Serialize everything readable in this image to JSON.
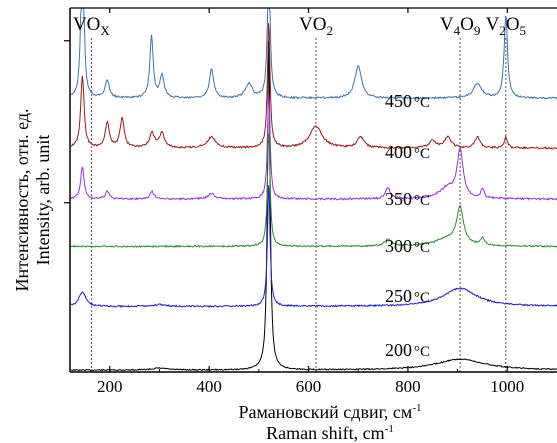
{
  "chart_data": {
    "type": "line",
    "xlabel_ru": "Рамановский сдвиг, см",
    "xlabel_ru_sup": "-1",
    "xlabel_en": "Raman shift, cm",
    "xlabel_en_sup": "-1",
    "ylabel_ru": "Интенсивность, отн. ед.",
    "ylabel_en": "Intensity, arb. unit",
    "xlim": [
      120,
      1100
    ],
    "x_ticks": [
      200,
      400,
      600,
      800,
      1000
    ],
    "y_ticks": [
      "",
      ""
    ],
    "reference_lines": [
      {
        "x": 163,
        "base": "VO",
        "sub": "X"
      },
      {
        "x": 615,
        "base": "VO",
        "sub": "2"
      },
      {
        "x": 905,
        "base": "V",
        "sub": "4",
        "base2": "O",
        "sub2": "9"
      },
      {
        "x": 997,
        "base": "V",
        "sub": "2",
        "base2": "O",
        "sub2": "5"
      }
    ],
    "series": [
      {
        "name": "200 °C",
        "label_num": "200",
        "label_unit": "°C",
        "color": "#000000",
        "base": 0.995,
        "noise": 0.003,
        "peaks": [
          [
            520,
            0.93,
            3
          ],
          [
            905,
            0.03,
            60
          ],
          [
            300,
            0.005,
            20
          ]
        ]
      },
      {
        "name": "250 °C",
        "label_num": "250",
        "label_unit": "°C",
        "color": "#1f1fd6",
        "base": 0.82,
        "noise": 0.004,
        "peaks": [
          [
            145,
            0.04,
            8
          ],
          [
            520,
            0.34,
            3
          ],
          [
            905,
            0.05,
            40
          ],
          [
            300,
            0.005,
            15
          ]
        ]
      },
      {
        "name": "300 °C",
        "label_num": "300",
        "label_unit": "°C",
        "color": "#2a8f2a",
        "base": 0.655,
        "noise": 0.004,
        "peaks": [
          [
            520,
            0.32,
            3
          ],
          [
            905,
            0.1,
            8
          ],
          [
            880,
            0.02,
            30
          ],
          [
            760,
            0.02,
            8
          ],
          [
            950,
            0.02,
            5
          ]
        ]
      },
      {
        "name": "350 °C",
        "label_num": "350",
        "label_unit": "°C",
        "color": "#9b30e0",
        "base": 0.525,
        "noise": 0.005,
        "peaks": [
          [
            145,
            0.09,
            4
          ],
          [
            195,
            0.02,
            5
          ],
          [
            285,
            0.02,
            5
          ],
          [
            405,
            0.015,
            8
          ],
          [
            520,
            0.3,
            3
          ],
          [
            905,
            0.13,
            7
          ],
          [
            880,
            0.03,
            20
          ],
          [
            950,
            0.025,
            4
          ],
          [
            760,
            0.03,
            6
          ]
        ]
      },
      {
        "name": "400 °C",
        "label_num": "400",
        "label_unit": "°C",
        "color": "#9b1c1c",
        "base": 0.385,
        "noise": 0.005,
        "peaks": [
          [
            145,
            0.2,
            4
          ],
          [
            195,
            0.07,
            5
          ],
          [
            225,
            0.08,
            5
          ],
          [
            285,
            0.04,
            6
          ],
          [
            305,
            0.04,
            6
          ],
          [
            405,
            0.03,
            10
          ],
          [
            520,
            0.35,
            3
          ],
          [
            615,
            0.06,
            15
          ],
          [
            705,
            0.03,
            8
          ],
          [
            850,
            0.02,
            8
          ],
          [
            880,
            0.03,
            8
          ],
          [
            940,
            0.03,
            6
          ],
          [
            997,
            0.03,
            4
          ]
        ]
      },
      {
        "name": "450 °C",
        "label_num": "450",
        "label_unit": "°C",
        "color": "#3c74b0",
        "base": 0.248,
        "noise": 0.005,
        "peaks": [
          [
            145,
            0.55,
            3
          ],
          [
            195,
            0.05,
            5
          ],
          [
            284,
            0.17,
            4
          ],
          [
            305,
            0.06,
            5
          ],
          [
            405,
            0.08,
            5
          ],
          [
            480,
            0.04,
            8
          ],
          [
            520,
            0.4,
            3
          ],
          [
            700,
            0.09,
            8
          ],
          [
            940,
            0.04,
            10
          ],
          [
            997,
            0.23,
            4
          ]
        ]
      }
    ]
  }
}
